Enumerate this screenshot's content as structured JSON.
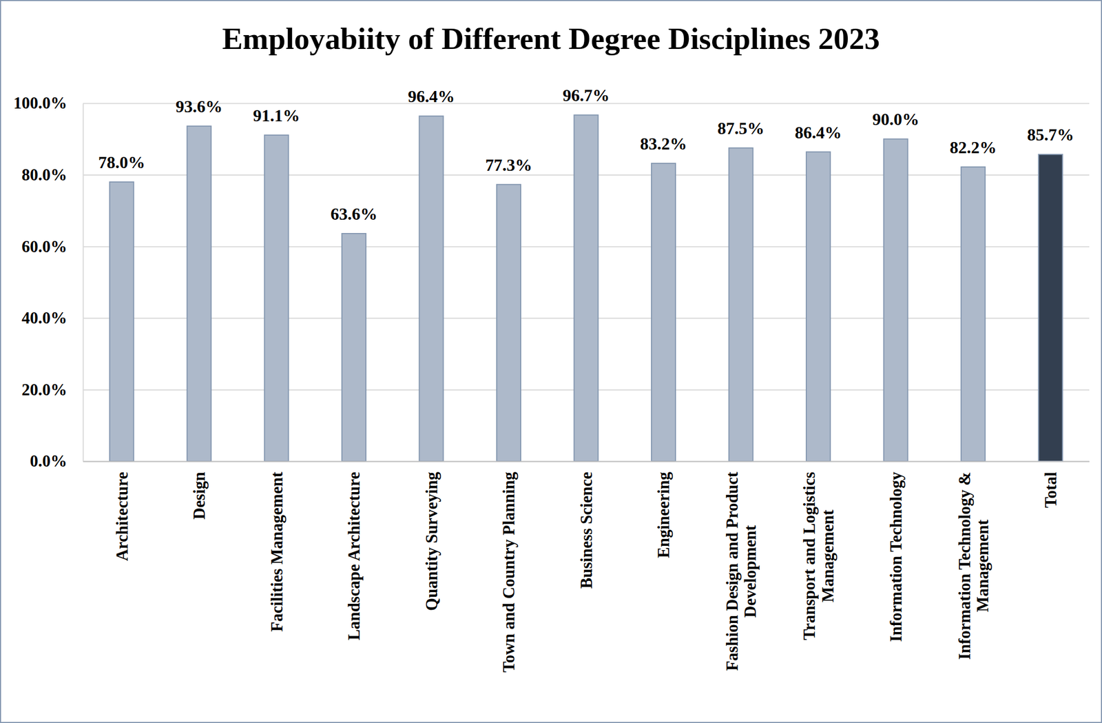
{
  "chart_data": {
    "type": "bar",
    "title": "Employabiity of Different Degree Disciplines 2023",
    "categories": [
      "Architecture",
      "Design",
      "Facilities Management",
      "Landscape Architecture",
      "Quantity Surveying",
      "Town and Country Planning",
      "Business Science",
      "Engineering",
      "Fashion Design and Product Development",
      "Transport and Logistics Management",
      "Information Technology",
      "Information Technology & Management",
      "Total"
    ],
    "values": [
      78.0,
      93.6,
      91.1,
      63.6,
      96.4,
      77.3,
      96.7,
      83.2,
      87.5,
      86.4,
      90.0,
      82.2,
      85.7
    ],
    "value_labels": [
      "78.0%",
      "93.6%",
      "91.1%",
      "63.6%",
      "96.4%",
      "77.3%",
      "96.7%",
      "83.2%",
      "87.5%",
      "86.4%",
      "90.0%",
      "82.2%",
      "85.7%"
    ],
    "colors": [
      "#adb9ca",
      "#adb9ca",
      "#adb9ca",
      "#adb9ca",
      "#adb9ca",
      "#adb9ca",
      "#adb9ca",
      "#adb9ca",
      "#adb9ca",
      "#adb9ca",
      "#adb9ca",
      "#adb9ca",
      "#333f50"
    ],
    "ylim": [
      0,
      100
    ],
    "yticks": [
      {
        "value": 0,
        "label": "0.0%"
      },
      {
        "value": 20,
        "label": "20.0%"
      },
      {
        "value": 40,
        "label": "40.0%"
      },
      {
        "value": 60,
        "label": "60.0%"
      },
      {
        "value": 80,
        "label": "80.0%"
      },
      {
        "value": 100,
        "label": "100.0%"
      }
    ],
    "grid": true,
    "data_labels": true
  }
}
